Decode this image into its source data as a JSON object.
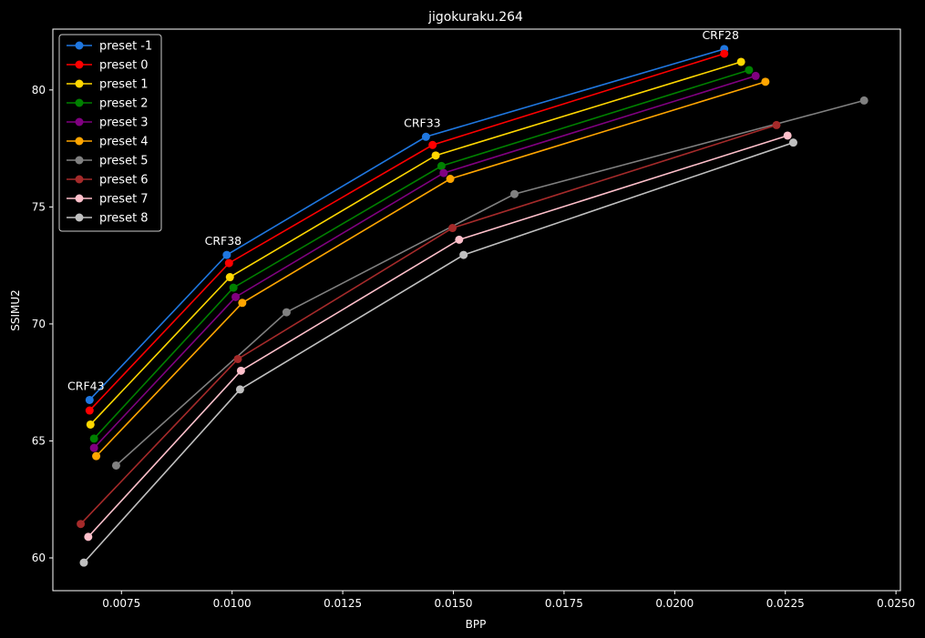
{
  "chart_data": {
    "type": "line",
    "title": "jigokuraku.264",
    "xlabel": "BPP",
    "ylabel": "SSIMU2",
    "xlim": [
      0.00595,
      0.0251
    ],
    "ylim": [
      58.6,
      82.6
    ],
    "xticks": [
      {
        "value": 0.0075,
        "label": "0.0075"
      },
      {
        "value": 0.01,
        "label": "0.0100"
      },
      {
        "value": 0.0125,
        "label": "0.0125"
      },
      {
        "value": 0.015,
        "label": "0.0150"
      },
      {
        "value": 0.0175,
        "label": "0.0175"
      },
      {
        "value": 0.02,
        "label": "0.0200"
      },
      {
        "value": 0.0225,
        "label": "0.0225"
      },
      {
        "value": 0.025,
        "label": "0.0250"
      }
    ],
    "yticks": [
      {
        "value": 60,
        "label": "60"
      },
      {
        "value": 65,
        "label": "65"
      },
      {
        "value": 70,
        "label": "70"
      },
      {
        "value": 75,
        "label": "75"
      },
      {
        "value": 80,
        "label": "80"
      }
    ],
    "grid": false,
    "legend_position": "top-left",
    "series": [
      {
        "name": "preset -1",
        "color": "#1f77e0",
        "x": [
          0.00678,
          0.00988,
          0.01438,
          0.02112
        ],
        "y": [
          66.75,
          72.95,
          78.0,
          81.75
        ]
      },
      {
        "name": "preset 0",
        "color": "#ff0000",
        "x": [
          0.00678,
          0.00993,
          0.01453,
          0.02112
        ],
        "y": [
          66.3,
          72.6,
          77.65,
          81.55
        ]
      },
      {
        "name": "preset 1",
        "color": "#ffd700",
        "x": [
          0.0068,
          0.00995,
          0.0146,
          0.0215
        ],
        "y": [
          65.7,
          72.0,
          77.2,
          81.2
        ]
      },
      {
        "name": "preset 2",
        "color": "#008000",
        "x": [
          0.00688,
          0.01003,
          0.01473,
          0.02168
        ],
        "y": [
          65.1,
          71.55,
          76.75,
          80.85
        ]
      },
      {
        "name": "preset 3",
        "color": "#800080",
        "x": [
          0.00688,
          0.01008,
          0.01478,
          0.02183
        ],
        "y": [
          64.7,
          71.15,
          76.45,
          80.6
        ]
      },
      {
        "name": "preset 4",
        "color": "#ffa500",
        "x": [
          0.00693,
          0.01023,
          0.01493,
          0.02205
        ],
        "y": [
          64.35,
          70.9,
          76.2,
          80.35
        ]
      },
      {
        "name": "preset 5",
        "color": "#808080",
        "x": [
          0.00738,
          0.01123,
          0.01638,
          0.02428
        ],
        "y": [
          63.95,
          70.5,
          75.55,
          79.55
        ]
      },
      {
        "name": "preset 6",
        "color": "#a52a2a",
        "x": [
          0.00658,
          0.01013,
          0.01498,
          0.0223
        ],
        "y": [
          61.45,
          68.5,
          74.1,
          78.5
        ]
      },
      {
        "name": "preset 7",
        "color": "#ffc0cb",
        "x": [
          0.00675,
          0.0102,
          0.01513,
          0.02255
        ],
        "y": [
          60.9,
          68.0,
          73.6,
          78.05
        ]
      },
      {
        "name": "preset 8",
        "color": "#c0c0c0",
        "x": [
          0.00665,
          0.01018,
          0.01523,
          0.02268
        ],
        "y": [
          59.8,
          67.2,
          72.95,
          77.75
        ]
      }
    ],
    "annotations": [
      {
        "text": "CRF43",
        "x": 0.00678,
        "y": 66.75
      },
      {
        "text": "CRF38",
        "x": 0.00988,
        "y": 72.95
      },
      {
        "text": "CRF33",
        "x": 0.01438,
        "y": 78.0
      },
      {
        "text": "CRF28",
        "x": 0.02112,
        "y": 81.75
      }
    ]
  }
}
